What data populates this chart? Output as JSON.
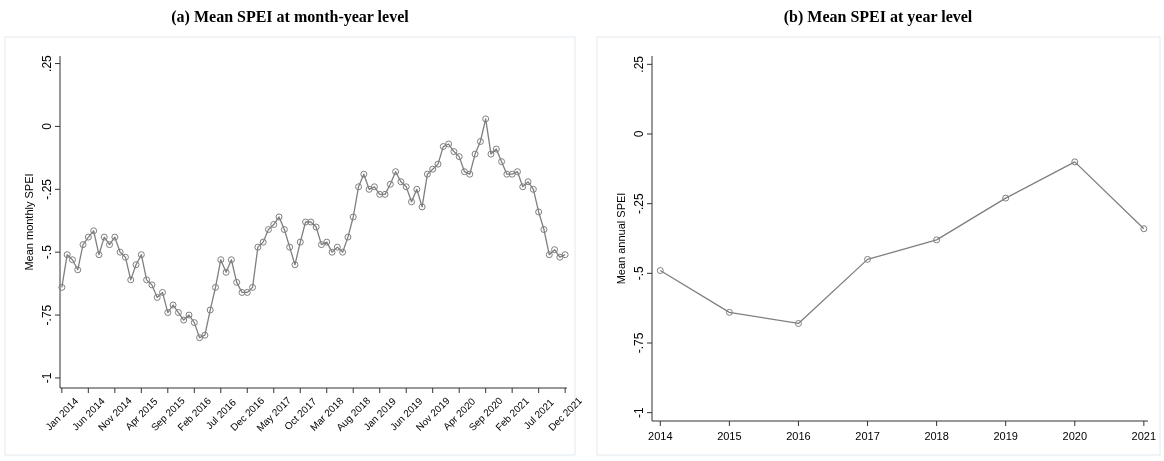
{
  "chart_data": [
    {
      "type": "line",
      "title": "(a)  Mean SPEI at month-year level",
      "ylabel": "Mean monthly SPEI",
      "categories": [
        "Jan 2014",
        null,
        null,
        null,
        null,
        "Jun 2014",
        null,
        null,
        null,
        null,
        "Nov 2014",
        null,
        null,
        null,
        null,
        "Apr 2015",
        null,
        null,
        null,
        null,
        "Sep 2015",
        null,
        null,
        null,
        null,
        "Feb 2016",
        null,
        null,
        null,
        null,
        "Jul 2016",
        null,
        null,
        null,
        null,
        "Dec 2016",
        null,
        null,
        null,
        null,
        "May 2017",
        null,
        null,
        null,
        null,
        "Oct 2017",
        null,
        null,
        null,
        null,
        "Mar 2018",
        null,
        null,
        null,
        null,
        "Aug 2018",
        null,
        null,
        null,
        null,
        "Jan 2019",
        null,
        null,
        null,
        null,
        "Jun 2019",
        null,
        null,
        null,
        null,
        "Nov 2019",
        null,
        null,
        null,
        null,
        "Apr 2020",
        null,
        null,
        null,
        null,
        "Sep 2020",
        null,
        null,
        null,
        null,
        "Feb 2021",
        null,
        null,
        null,
        null,
        "Jul 2021",
        null,
        null,
        null,
        null,
        "Dec 2021"
      ],
      "series": [
        {
          "color": "#7f7f7f",
          "values": [
            -0.64,
            -0.51,
            -0.53,
            -0.57,
            -0.47,
            -0.44,
            -0.415,
            -0.51,
            -0.44,
            -0.47,
            -0.44,
            -0.5,
            -0.52,
            -0.61,
            -0.55,
            -0.51,
            -0.61,
            -0.63,
            -0.68,
            -0.66,
            -0.74,
            -0.71,
            -0.74,
            -0.77,
            -0.75,
            -0.78,
            -0.84,
            -0.83,
            -0.73,
            -0.64,
            -0.53,
            -0.58,
            -0.53,
            -0.62,
            -0.66,
            -0.66,
            -0.64,
            -0.48,
            -0.46,
            -0.41,
            -0.39,
            -0.36,
            -0.41,
            -0.48,
            -0.55,
            -0.46,
            -0.38,
            -0.38,
            -0.4,
            -0.47,
            -0.46,
            -0.5,
            -0.48,
            -0.5,
            -0.44,
            -0.36,
            -0.24,
            -0.19,
            -0.25,
            -0.24,
            -0.27,
            -0.27,
            -0.23,
            -0.18,
            -0.22,
            -0.24,
            -0.3,
            -0.25,
            -0.32,
            -0.19,
            -0.17,
            -0.15,
            -0.08,
            -0.07,
            -0.1,
            -0.12,
            -0.18,
            -0.19,
            -0.11,
            -0.06,
            0.03,
            -0.11,
            -0.09,
            -0.14,
            -0.19,
            -0.19,
            -0.18,
            -0.24,
            -0.22,
            -0.25,
            -0.34,
            -0.41,
            -0.51,
            -0.49,
            -0.52,
            -0.51
          ]
        }
      ],
      "ylim": [
        -1.04,
        0.28
      ],
      "yticks": [
        {
          "value": -1,
          "label": "-1"
        },
        {
          "value": -0.75,
          "label": "-.75"
        },
        {
          "value": -0.5,
          "label": "-.5"
        },
        {
          "value": -0.25,
          "label": "-.25"
        },
        0,
        {
          "value": 0.25,
          "label": ".25"
        }
      ],
      "marker": "circle"
    },
    {
      "type": "line",
      "title": "(b)  Mean SPEI at year level",
      "ylabel": "Mean annual SPEI",
      "x": [
        2014,
        2015,
        2016,
        2017,
        2018,
        2019,
        2020,
        2021
      ],
      "series": [
        {
          "color": "#7f7f7f",
          "values": [
            -0.49,
            -0.64,
            -0.68,
            -0.45,
            -0.38,
            -0.23,
            -0.1,
            -0.34
          ]
        }
      ],
      "xlim": [
        2013.88,
        2021.06
      ],
      "xticks": [
        2014,
        2015,
        2016,
        2017,
        2018,
        2019,
        2020,
        2021
      ],
      "ylim": [
        -1.03,
        0.28
      ],
      "yticks": [
        {
          "value": -1,
          "label": "-1"
        },
        {
          "value": -0.75,
          "label": "-.75"
        },
        {
          "value": -0.5,
          "label": "-.5"
        },
        {
          "value": -0.25,
          "label": "-.25"
        },
        0,
        {
          "value": 0.25,
          "label": ".25"
        }
      ],
      "marker": "circle"
    }
  ]
}
